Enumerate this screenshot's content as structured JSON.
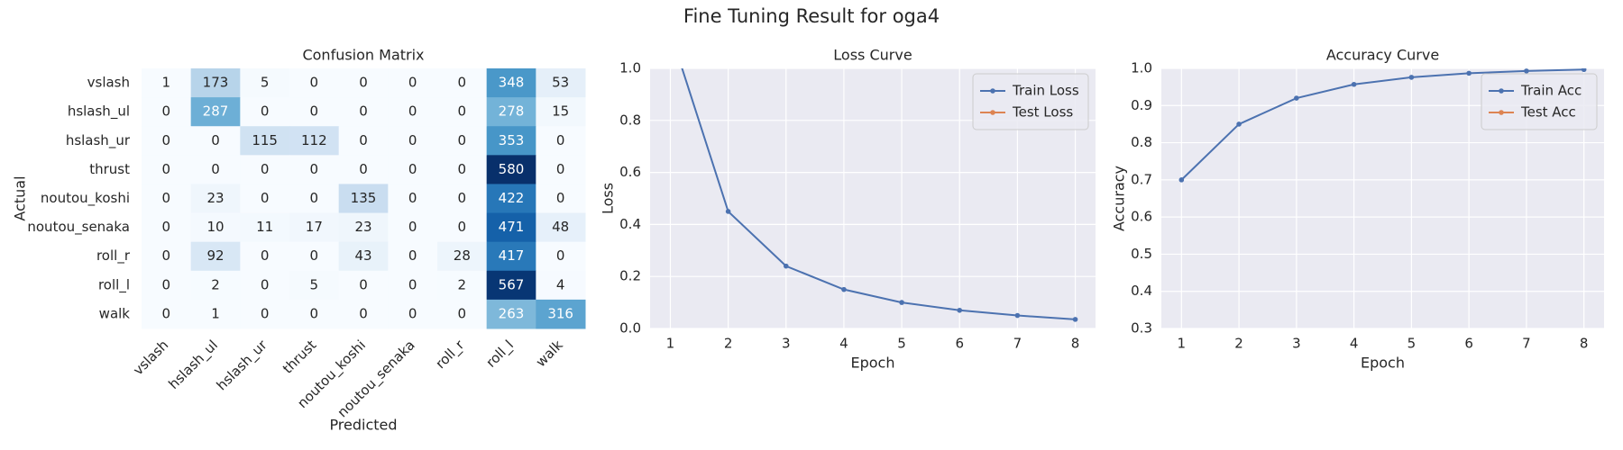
{
  "title": "Fine Tuning Result for oga4",
  "chart_data": [
    {
      "type": "heatmap",
      "title": "Confusion Matrix",
      "xlabel": "Predicted",
      "ylabel": "Actual",
      "columns": [
        "vslash",
        "hslash_ul",
        "hslash_ur",
        "thrust",
        "noutou_koshi",
        "noutou_senaka",
        "roll_r",
        "roll_l",
        "walk"
      ],
      "rows": [
        "vslash",
        "hslash_ul",
        "hslash_ur",
        "thrust",
        "noutou_koshi",
        "noutou_senaka",
        "roll_r",
        "roll_l",
        "walk"
      ],
      "values": [
        [
          1,
          173,
          5,
          0,
          0,
          0,
          0,
          348,
          53
        ],
        [
          0,
          287,
          0,
          0,
          0,
          0,
          0,
          278,
          15
        ],
        [
          0,
          0,
          115,
          112,
          0,
          0,
          0,
          353,
          0
        ],
        [
          0,
          0,
          0,
          0,
          0,
          0,
          0,
          580,
          0
        ],
        [
          0,
          23,
          0,
          0,
          135,
          0,
          0,
          422,
          0
        ],
        [
          0,
          10,
          11,
          17,
          23,
          0,
          0,
          471,
          48
        ],
        [
          0,
          92,
          0,
          0,
          43,
          0,
          28,
          417,
          0
        ],
        [
          0,
          2,
          0,
          5,
          0,
          0,
          2,
          567,
          4
        ],
        [
          0,
          1,
          0,
          0,
          0,
          0,
          0,
          263,
          316
        ]
      ],
      "colormap": "Blues"
    },
    {
      "type": "line",
      "title": "Loss Curve",
      "xlabel": "Epoch",
      "ylabel": "Loss",
      "x": [
        1,
        2,
        3,
        4,
        5,
        6,
        7,
        8
      ],
      "series": [
        {
          "name": "Train Loss",
          "color": "#4c72b0",
          "values": [
            1.14,
            0.45,
            0.24,
            0.15,
            0.1,
            0.07,
            0.05,
            0.035
          ]
        },
        {
          "name": "Test Loss",
          "color": "#dd8452",
          "values": [
            null,
            null,
            null,
            null,
            null,
            null,
            null,
            null
          ]
        }
      ],
      "xlim": [
        0.65,
        8.35
      ],
      "xticks": [
        1,
        2,
        3,
        4,
        5,
        6,
        7,
        8
      ],
      "ylim": [
        0,
        1
      ],
      "yticks": [
        {
          "value": 0,
          "label": "0.0"
        },
        0.2,
        0.4,
        0.6,
        0.8,
        {
          "value": 1,
          "label": "1.0"
        }
      ],
      "grid": true,
      "legend": "upper right"
    },
    {
      "type": "line",
      "title": "Accuracy Curve",
      "xlabel": "Epoch",
      "ylabel": "Accuracy",
      "x": [
        1,
        2,
        3,
        4,
        5,
        6,
        7,
        8
      ],
      "series": [
        {
          "name": "Train Acc",
          "color": "#4c72b0",
          "values": [
            0.7,
            0.85,
            0.92,
            0.957,
            0.976,
            0.987,
            0.993,
            0.997
          ]
        },
        {
          "name": "Test Acc",
          "color": "#dd8452",
          "values": [
            null,
            null,
            null,
            null,
            null,
            null,
            null,
            null
          ]
        }
      ],
      "xlim": [
        0.65,
        8.35
      ],
      "xticks": [
        1,
        2,
        3,
        4,
        5,
        6,
        7,
        8
      ],
      "ylim": [
        0.3,
        1
      ],
      "yticks": [
        0.3,
        0.4,
        0.5,
        0.6,
        0.7,
        0.8,
        0.9,
        {
          "value": 1,
          "label": "1.0"
        }
      ],
      "grid": true,
      "legend": "upper right"
    }
  ]
}
